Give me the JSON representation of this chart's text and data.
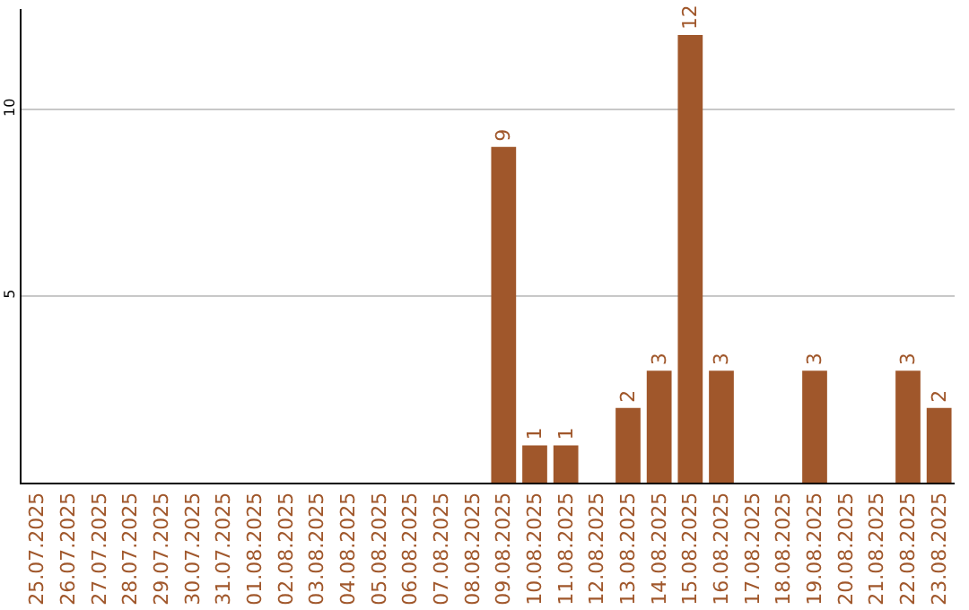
{
  "chart_data": {
    "type": "bar",
    "categories": [
      "25.07.2025",
      "26.07.2025",
      "27.07.2025",
      "28.07.2025",
      "29.07.2025",
      "30.07.2025",
      "31.07.2025",
      "01.08.2025",
      "02.08.2025",
      "03.08.2025",
      "04.08.2025",
      "05.08.2025",
      "06.08.2025",
      "07.08.2025",
      "08.08.2025",
      "09.08.2025",
      "10.08.2025",
      "11.08.2025",
      "12.08.2025",
      "13.08.2025",
      "14.08.2025",
      "15.08.2025",
      "16.08.2025",
      "17.08.2025",
      "18.08.2025",
      "19.08.2025",
      "20.08.2025",
      "21.08.2025",
      "22.08.2025",
      "23.08.2025"
    ],
    "values": [
      0,
      0,
      0,
      0,
      0,
      0,
      0,
      0,
      0,
      0,
      0,
      0,
      0,
      0,
      0,
      9,
      1,
      1,
      0,
      2,
      3,
      12,
      3,
      0,
      0,
      3,
      0,
      0,
      3,
      2
    ],
    "value_labels": [
      null,
      null,
      null,
      null,
      null,
      null,
      null,
      null,
      null,
      null,
      null,
      null,
      null,
      null,
      null,
      "9",
      "1",
      "1",
      null,
      "2",
      "3",
      "12",
      "3",
      null,
      null,
      "3",
      null,
      null,
      "3",
      "2"
    ],
    "color": "#a0572b",
    "ylim": [
      0,
      12.7
    ],
    "yticks": [
      5,
      10
    ],
    "grid": "y"
  }
}
